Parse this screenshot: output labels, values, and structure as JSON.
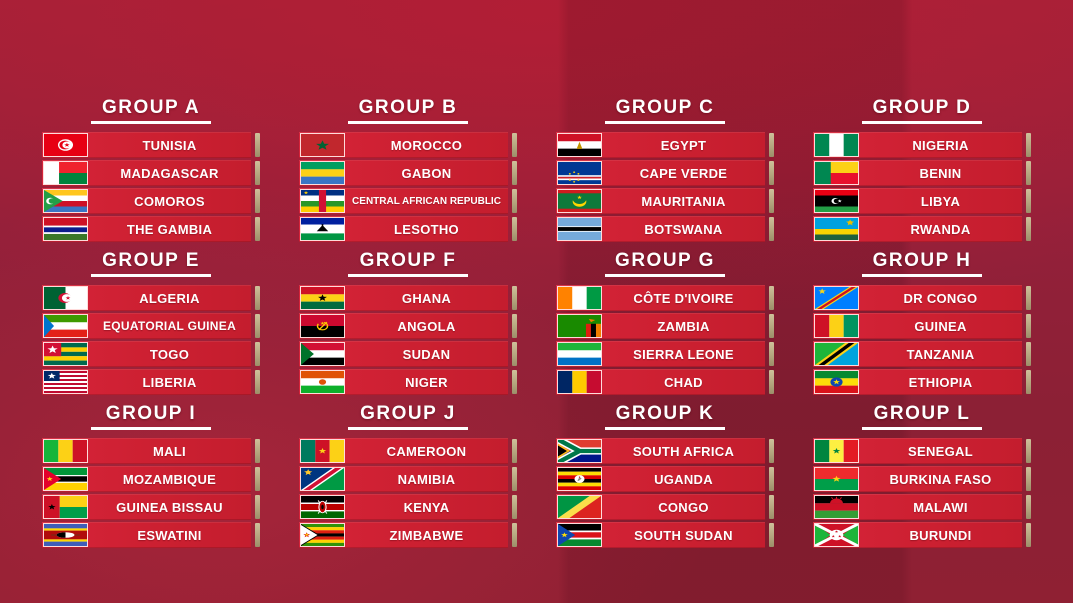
{
  "colors": {
    "background_maroon": "#8f2033",
    "background_crimson_top": "#a42139",
    "row_red": "#cc2031",
    "tick_tan": "#b5a67f",
    "text_white": "#ffffff"
  },
  "groups": [
    {
      "label": "GROUP A",
      "teams": [
        {
          "name": "TUNISIA",
          "flag": "tunisia"
        },
        {
          "name": "MADAGASCAR",
          "flag": "madagascar"
        },
        {
          "name": "COMOROS",
          "flag": "comoros"
        },
        {
          "name": "THE GAMBIA",
          "flag": "gambia"
        }
      ]
    },
    {
      "label": "GROUP B",
      "teams": [
        {
          "name": "MOROCCO",
          "flag": "morocco"
        },
        {
          "name": "GABON",
          "flag": "gabon"
        },
        {
          "name": "CENTRAL AFRICAN REPUBLIC",
          "flag": "car"
        },
        {
          "name": "LESOTHO",
          "flag": "lesotho"
        }
      ]
    },
    {
      "label": "GROUP C",
      "teams": [
        {
          "name": "EGYPT",
          "flag": "egypt"
        },
        {
          "name": "CAPE VERDE",
          "flag": "cape_verde"
        },
        {
          "name": "MAURITANIA",
          "flag": "mauritania"
        },
        {
          "name": "BOTSWANA",
          "flag": "botswana"
        }
      ]
    },
    {
      "label": "GROUP D",
      "teams": [
        {
          "name": "NIGERIA",
          "flag": "nigeria"
        },
        {
          "name": "BENIN",
          "flag": "benin"
        },
        {
          "name": "LIBYA",
          "flag": "libya"
        },
        {
          "name": "RWANDA",
          "flag": "rwanda"
        }
      ]
    },
    {
      "label": "GROUP E",
      "teams": [
        {
          "name": "ALGERIA",
          "flag": "algeria"
        },
        {
          "name": "EQUATORIAL GUINEA",
          "flag": "eq_guinea"
        },
        {
          "name": "TOGO",
          "flag": "togo"
        },
        {
          "name": "LIBERIA",
          "flag": "liberia"
        }
      ]
    },
    {
      "label": "GROUP F",
      "teams": [
        {
          "name": "GHANA",
          "flag": "ghana"
        },
        {
          "name": "ANGOLA",
          "flag": "angola"
        },
        {
          "name": "SUDAN",
          "flag": "sudan"
        },
        {
          "name": "NIGER",
          "flag": "niger"
        }
      ]
    },
    {
      "label": "GROUP G",
      "teams": [
        {
          "name": "CÔTE D'IVOIRE",
          "flag": "civ"
        },
        {
          "name": "ZAMBIA",
          "flag": "zambia"
        },
        {
          "name": "SIERRA LEONE",
          "flag": "sierra_leone"
        },
        {
          "name": "CHAD",
          "flag": "chad"
        }
      ]
    },
    {
      "label": "GROUP H",
      "teams": [
        {
          "name": "DR CONGO",
          "flag": "drc"
        },
        {
          "name": "GUINEA",
          "flag": "guinea"
        },
        {
          "name": "TANZANIA",
          "flag": "tanzania"
        },
        {
          "name": "ETHIOPIA",
          "flag": "ethiopia"
        }
      ]
    },
    {
      "label": "GROUP I",
      "teams": [
        {
          "name": "MALI",
          "flag": "mali"
        },
        {
          "name": "MOZAMBIQUE",
          "flag": "mozambique"
        },
        {
          "name": "GUINEA BISSAU",
          "flag": "guinea_bissau"
        },
        {
          "name": "ESWATINI",
          "flag": "eswatini"
        }
      ]
    },
    {
      "label": "GROUP J",
      "teams": [
        {
          "name": "CAMEROON",
          "flag": "cameroon"
        },
        {
          "name": "NAMIBIA",
          "flag": "namibia"
        },
        {
          "name": "KENYA",
          "flag": "kenya"
        },
        {
          "name": "ZIMBABWE",
          "flag": "zimbabwe"
        }
      ]
    },
    {
      "label": "GROUP K",
      "teams": [
        {
          "name": "SOUTH AFRICA",
          "flag": "south_africa"
        },
        {
          "name": "UGANDA",
          "flag": "uganda"
        },
        {
          "name": "CONGO",
          "flag": "congo"
        },
        {
          "name": "SOUTH SUDAN",
          "flag": "south_sudan"
        }
      ]
    },
    {
      "label": "GROUP L",
      "teams": [
        {
          "name": "SENEGAL",
          "flag": "senegal"
        },
        {
          "name": "BURKINA FASO",
          "flag": "burkina_faso"
        },
        {
          "name": "MALAWI",
          "flag": "malawi"
        },
        {
          "name": "BURUNDI",
          "flag": "burundi"
        }
      ]
    }
  ]
}
